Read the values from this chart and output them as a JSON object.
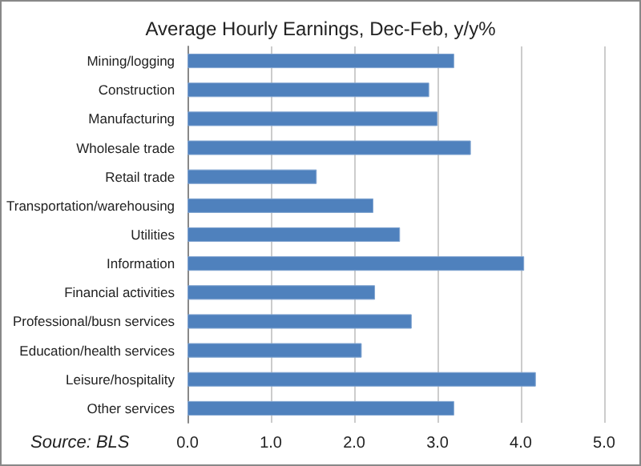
{
  "chart_data": {
    "type": "bar",
    "orientation": "horizontal",
    "title": "Average Hourly Earnings, Dec-Feb, y/y%",
    "categories": [
      "Mining/logging",
      "Construction",
      "Manufacturing",
      "Wholesale trade",
      "Retail trade",
      "Transportation/warehousing",
      "Utilities",
      "Information",
      "Financial activities",
      "Professional/busn services",
      "Education/health services",
      "Leisure/hospitality",
      "Other services"
    ],
    "values": [
      3.2,
      2.9,
      3.0,
      3.4,
      1.55,
      2.23,
      2.55,
      4.04,
      2.25,
      2.69,
      2.09,
      4.18,
      3.2
    ],
    "color": "#4f81bd",
    "xlim": [
      0,
      5
    ],
    "xticks": [
      {
        "value": 0,
        "label": "0.0"
      },
      {
        "value": 1,
        "label": "1.0"
      },
      {
        "value": 2,
        "label": "2.0"
      },
      {
        "value": 3,
        "label": "3.0"
      },
      {
        "value": 4,
        "label": "4.0"
      },
      {
        "value": 5,
        "label": "5.0"
      }
    ],
    "grid": "x",
    "annotations": [
      "Source: BLS"
    ]
  }
}
